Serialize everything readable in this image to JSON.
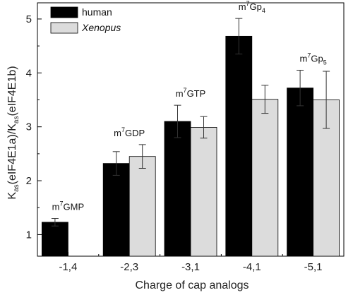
{
  "chart_data": {
    "type": "bar",
    "xlabel": "Charge of cap analogs",
    "ylabel": "K_as(eIF4E1a)/K_as(eIF4E1b)",
    "ylabel_parts": {
      "k1": "K",
      "sub1": "as",
      "mid": "(eIF4E1a)/K",
      "sub2": "as",
      "end": "(eIF4E1b)"
    },
    "ylim": [
      0.6,
      5.3
    ],
    "yticks": [
      1,
      2,
      3,
      4,
      5
    ],
    "categories": [
      "-1,4",
      "-2,3",
      "-3,1",
      "-4,1",
      "-5,1"
    ],
    "bar_labels": [
      {
        "base": "m",
        "sup": "7",
        "rest": "GMP",
        "sub": ""
      },
      {
        "base": "m",
        "sup": "7",
        "rest": "GDP",
        "sub": ""
      },
      {
        "base": "m",
        "sup": "7",
        "rest": "GTP",
        "sub": ""
      },
      {
        "base": "m",
        "sup": "7",
        "rest": "Gp",
        "sub": "4"
      },
      {
        "base": "m",
        "sup": "7",
        "rest": "Gp",
        "sub": "5"
      }
    ],
    "series": [
      {
        "name": "human",
        "color": "#000000",
        "values": [
          1.23,
          2.32,
          3.1,
          4.68,
          3.72
        ],
        "errors": [
          0.07,
          0.22,
          0.3,
          0.33,
          0.33
        ]
      },
      {
        "name": "Xenopus",
        "color": "#dcdcdc",
        "values": [
          null,
          2.45,
          2.99,
          3.51,
          3.5
        ],
        "errors": [
          null,
          0.22,
          0.2,
          0.26,
          0.53
        ]
      }
    ],
    "legend_position": "top-left",
    "grid": false
  }
}
